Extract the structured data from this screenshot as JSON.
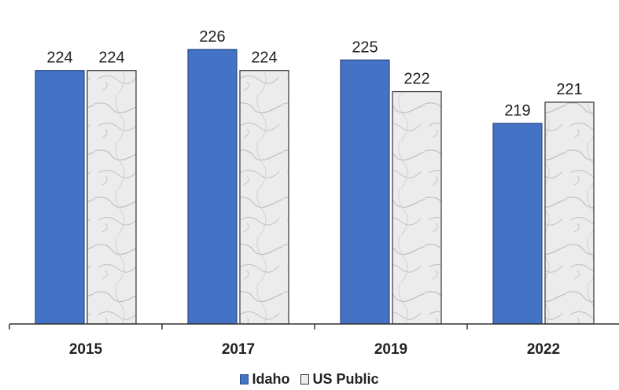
{
  "chart_data": {
    "type": "bar",
    "title": "",
    "xlabel": "",
    "ylabel": "",
    "categories": [
      "2015",
      "2017",
      "2019",
      "2022"
    ],
    "series": [
      {
        "name": "Idaho",
        "values": [
          224,
          226,
          225,
          219
        ],
        "color": "#4472c4"
      },
      {
        "name": "US Public",
        "values": [
          224,
          224,
          222,
          221
        ],
        "color": "#e9e9e9",
        "pattern": "marble"
      }
    ],
    "ylim": [
      200,
      228
    ],
    "grid": false,
    "legend_position": "bottom"
  },
  "legend": {
    "items": [
      "Idaho",
      "US Public"
    ]
  }
}
